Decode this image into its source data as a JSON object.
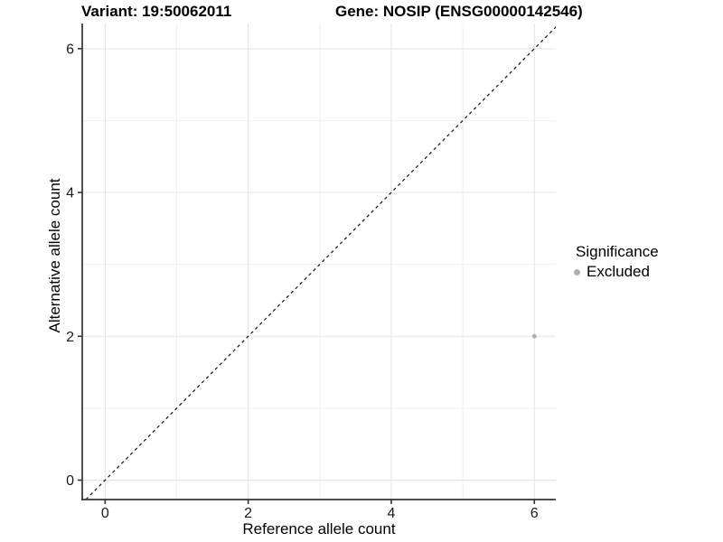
{
  "header": {
    "variant_title": "Variant: 19:50062011",
    "gene_title": "Gene: NOSIP (ENSG00000142546)"
  },
  "legend": {
    "title": "Significance",
    "items": [
      {
        "label": "Excluded",
        "color": "#b0b0b0"
      }
    ]
  },
  "chart_data": {
    "type": "scatter",
    "title_left": "Variant: 19:50062011",
    "title_right": "Gene: NOSIP (ENSG00000142546)",
    "xlabel": "Reference allele count",
    "ylabel": "Alternative allele count",
    "xlim": [
      -0.32,
      6.3
    ],
    "ylim": [
      -0.27,
      6.35
    ],
    "x_ticks": [
      0,
      2,
      4,
      6
    ],
    "y_ticks": [
      0,
      2,
      4,
      6
    ],
    "x_minor_ticks": [
      1,
      3,
      5
    ],
    "y_minor_ticks": [
      1,
      3,
      5
    ],
    "grid": true,
    "legend_position": "right",
    "legend_title": "Significance",
    "identity_line": {
      "style": "dashed",
      "slope": 1,
      "intercept": 0,
      "color": "#111111"
    },
    "series": [
      {
        "name": "Excluded",
        "color": "#b0b0b0",
        "points": [
          {
            "x": 6,
            "y": 2
          }
        ]
      }
    ]
  },
  "colors": {
    "grid_major": "#e3e3e3",
    "grid_minor": "#f1f1f1",
    "axis_line": "#333333",
    "tick_mark": "#333333",
    "tick_label": "#1a1a1a",
    "point": "#b0b0b0"
  }
}
